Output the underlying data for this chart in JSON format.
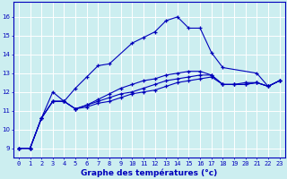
{
  "xlabel": "Graphe des températures (°c)",
  "background_color": "#cceef0",
  "grid_color": "#ffffff",
  "line_color": "#0000bb",
  "xlim": [
    -0.5,
    23.5
  ],
  "ylim": [
    8.5,
    16.8
  ],
  "xticks": [
    0,
    1,
    2,
    3,
    4,
    5,
    6,
    7,
    8,
    9,
    10,
    11,
    12,
    13,
    14,
    15,
    16,
    17,
    18,
    19,
    20,
    21,
    22,
    23
  ],
  "yticks": [
    9,
    10,
    11,
    12,
    13,
    14,
    15,
    16
  ],
  "series1_x": [
    0,
    1,
    2,
    3,
    4,
    5,
    6,
    7,
    8,
    10,
    11,
    12,
    13,
    14,
    15,
    16,
    17,
    18,
    21,
    22,
    23
  ],
  "series1_y": [
    9.0,
    9.0,
    10.6,
    12.0,
    11.5,
    12.2,
    12.8,
    13.4,
    13.5,
    14.6,
    14.9,
    15.2,
    15.8,
    16.0,
    15.4,
    15.4,
    14.1,
    13.3,
    13.0,
    12.3,
    12.6
  ],
  "series2_x": [
    0,
    1,
    2,
    3,
    4,
    5,
    6,
    7,
    8,
    9,
    10,
    11,
    12,
    13,
    14,
    15,
    16,
    17,
    18,
    19,
    20,
    21,
    22,
    23
  ],
  "series2_y": [
    9.0,
    9.0,
    10.6,
    11.5,
    11.5,
    11.1,
    11.2,
    11.4,
    11.5,
    11.7,
    11.9,
    12.0,
    12.1,
    12.3,
    12.5,
    12.6,
    12.7,
    12.8,
    12.4,
    12.4,
    12.5,
    12.5,
    12.3,
    12.6
  ],
  "series3_x": [
    0,
    1,
    2,
    3,
    4,
    5,
    6,
    7,
    8,
    9,
    10,
    11,
    12,
    13,
    14,
    15,
    16,
    17,
    18,
    19,
    20,
    21,
    22,
    23
  ],
  "series3_y": [
    9.0,
    9.0,
    10.6,
    11.5,
    11.5,
    11.1,
    11.3,
    11.5,
    11.7,
    11.9,
    12.0,
    12.2,
    12.4,
    12.6,
    12.7,
    12.8,
    12.9,
    12.9,
    12.4,
    12.4,
    12.4,
    12.5,
    12.3,
    12.6
  ],
  "series4_x": [
    0,
    1,
    2,
    3,
    4,
    5,
    6,
    7,
    8,
    9,
    10,
    11,
    12,
    13,
    14,
    15,
    16,
    17,
    18,
    19,
    20,
    21,
    22,
    23
  ],
  "series4_y": [
    9.0,
    9.0,
    10.6,
    11.5,
    11.5,
    11.1,
    11.3,
    11.6,
    11.9,
    12.2,
    12.4,
    12.6,
    12.7,
    12.9,
    13.0,
    13.1,
    13.1,
    12.9,
    12.4,
    12.4,
    12.4,
    12.5,
    12.3,
    12.6
  ],
  "xlabel_fontsize": 6.5,
  "tick_fontsize": 5.0
}
